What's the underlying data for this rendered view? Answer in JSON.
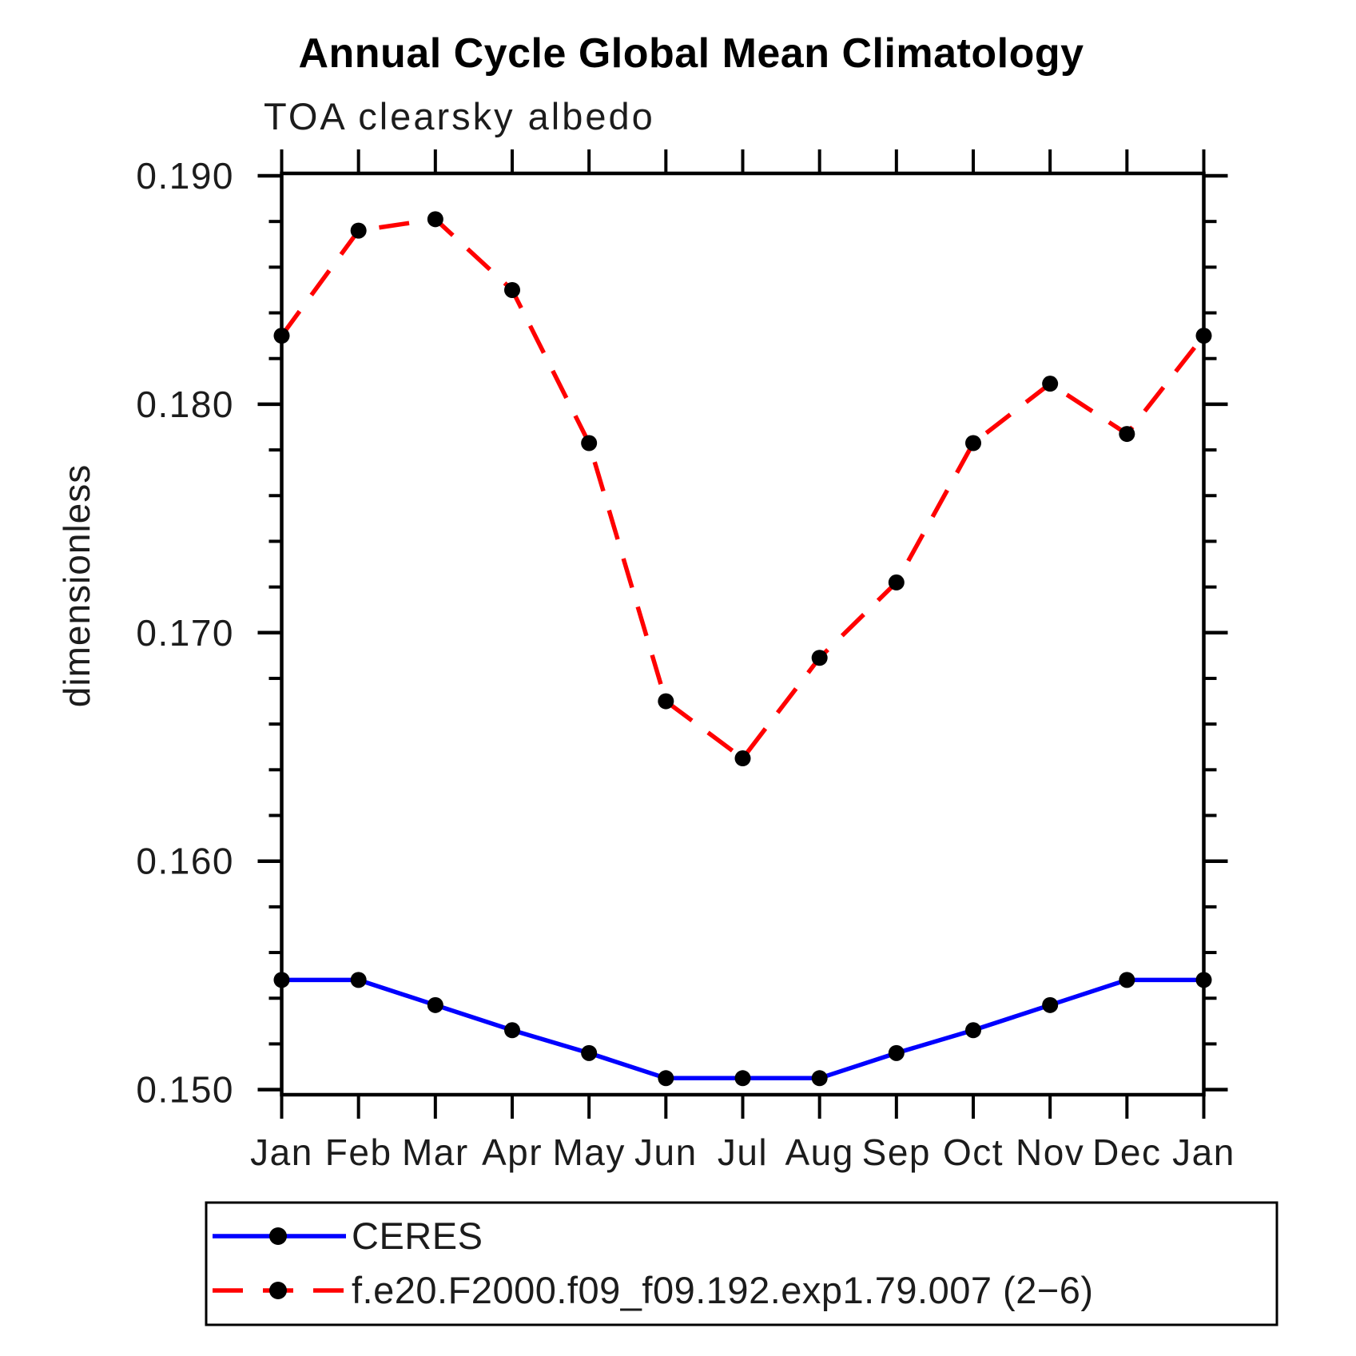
{
  "title": "Annual Cycle Global Mean Climatology",
  "subtitle": "TOA clearsky albedo",
  "chart_data": {
    "type": "line",
    "x_categories": [
      "Jan",
      "Feb",
      "Mar",
      "Apr",
      "May",
      "Jun",
      "Jul",
      "Aug",
      "Sep",
      "Oct",
      "Nov",
      "Dec",
      "Jan"
    ],
    "xlabel": "",
    "ylabel": "dimensionless",
    "ylim": [
      0.1498,
      0.1901
    ],
    "y_major_ticks": [
      0.15,
      0.16,
      0.17,
      0.18,
      0.19
    ],
    "y_major_tick_labels": [
      "0.150",
      "0.160",
      "0.170",
      "0.180",
      "0.190"
    ],
    "y_minor_tick_step": 0.002,
    "grid": false,
    "legend_position": "bottom-left-box",
    "marker": "filled-circle",
    "marker_color": "#000000",
    "axis_color": "#000000",
    "series": [
      {
        "name": "CERES",
        "color": "#0000ff",
        "line_style": "solid",
        "values": [
          0.1548,
          0.1548,
          0.1537,
          0.1526,
          0.1516,
          0.1505,
          0.1505,
          0.1505,
          0.1516,
          0.1526,
          0.1537,
          0.1548,
          0.1548
        ]
      },
      {
        "name": "f.e20.F2000.f09_f09.192.exp1.79.007 (2−6)",
        "color": "#ff0000",
        "line_style": "dashed",
        "values": [
          0.183,
          0.1876,
          0.1881,
          0.185,
          0.1783,
          0.167,
          0.1645,
          0.1689,
          0.1722,
          0.1783,
          0.1809,
          0.1787,
          0.183
        ]
      }
    ]
  }
}
